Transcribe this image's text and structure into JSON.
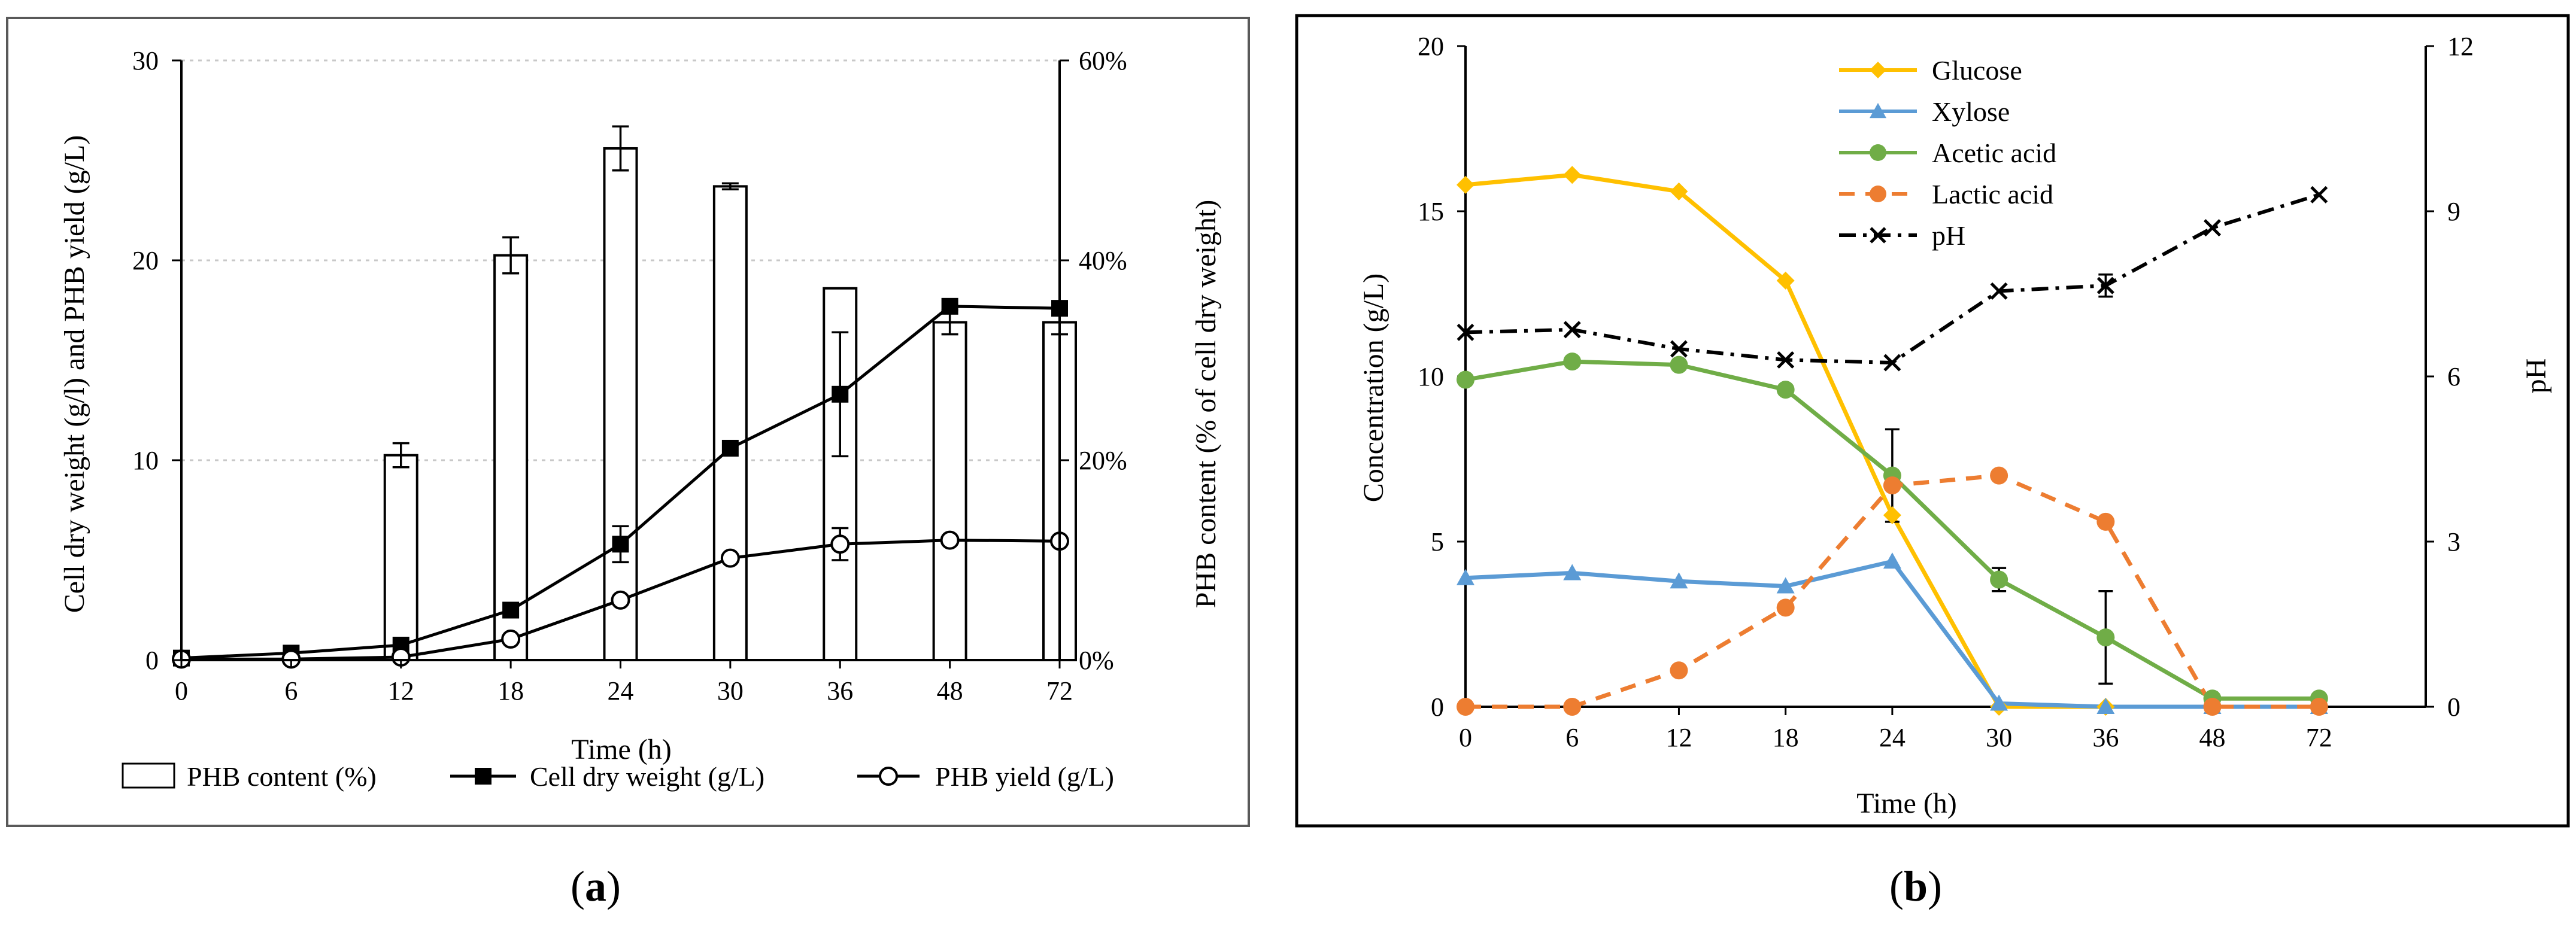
{
  "chart_data": [
    {
      "type": "bar",
      "panel_label": "(a)",
      "panel_label_parts": [
        "(",
        "a",
        ")"
      ],
      "xlabel": "Time (h)",
      "ylabel_left": "Cell dry weight (g/l) and PHB yield (g/L)",
      "ylabel_right": "PHB content (% of cell dry weight)",
      "categories": [
        "0",
        "6",
        "12",
        "18",
        "24",
        "30",
        "36",
        "48",
        "72"
      ],
      "ylim_left": [
        0,
        30
      ],
      "yticks_left": [
        "0",
        "10",
        "20",
        "30"
      ],
      "ylim_right": [
        0,
        60
      ],
      "yticks_right": [
        "0%",
        "20%",
        "40%",
        "60%"
      ],
      "grid": true,
      "legend_position": "bottom",
      "series": [
        {
          "name": "PHB content (%)",
          "kind": "bar",
          "axis": "right",
          "values": [
            0,
            0,
            20.5,
            40.5,
            51.2,
            47.4,
            37.2,
            33.8,
            33.8
          ],
          "errors": [
            0,
            0,
            1.2,
            1.8,
            2.2,
            0.3,
            0,
            1.2,
            1.2
          ]
        },
        {
          "name": "Cell dry weight (g/L)",
          "kind": "line",
          "marker": "filled-square",
          "axis": "left",
          "values": [
            0.1,
            0.35,
            0.75,
            2.5,
            5.8,
            10.6,
            13.3,
            17.7,
            17.6
          ],
          "errors": [
            0,
            0,
            0,
            0,
            0.9,
            0,
            3.1,
            0,
            0
          ]
        },
        {
          "name": "PHB yield (g/L)",
          "kind": "line",
          "marker": "open-circle",
          "axis": "left",
          "values": [
            0.05,
            0.05,
            0.15,
            1.05,
            3.0,
            5.1,
            5.8,
            6.0,
            5.95
          ],
          "errors": [
            0,
            0,
            0,
            0,
            0,
            0,
            0.8,
            0,
            0
          ]
        }
      ]
    },
    {
      "type": "line",
      "panel_label": "(b)",
      "panel_label_parts": [
        "(",
        "b",
        ")"
      ],
      "xlabel": "Time (h)",
      "ylabel_left": "Concentration (g/L)",
      "ylabel_right": "pH",
      "categories": [
        "0",
        "6",
        "12",
        "18",
        "24",
        "30",
        "36",
        "48",
        "72"
      ],
      "ylim_left": [
        0,
        20
      ],
      "yticks_left": [
        "0",
        "5",
        "10",
        "15",
        "20"
      ],
      "ylim_right": [
        0,
        12
      ],
      "yticks_right": [
        "0",
        "3",
        "6",
        "9",
        "12"
      ],
      "grid": false,
      "legend_position": "top-center",
      "series": [
        {
          "name": "Glucose",
          "color": "#FFC000",
          "marker": "diamond",
          "dash": "solid",
          "axis": "left",
          "values": [
            15.8,
            16.1,
            15.6,
            12.9,
            5.8,
            0,
            0,
            0,
            0
          ],
          "errors": [
            0,
            0,
            0,
            0,
            0,
            0,
            0,
            0,
            0
          ]
        },
        {
          "name": "Xylose",
          "color": "#5B9BD5",
          "marker": "triangle",
          "dash": "solid",
          "axis": "left",
          "values": [
            3.9,
            4.05,
            3.8,
            3.65,
            4.4,
            0.1,
            0,
            0,
            0
          ],
          "errors": [
            0,
            0,
            0,
            0,
            0,
            0,
            0,
            0,
            0
          ]
        },
        {
          "name": "Acetic acid",
          "color": "#70AD47",
          "marker": "circle",
          "dash": "solid",
          "axis": "left",
          "values": [
            9.9,
            10.45,
            10.35,
            9.6,
            7.0,
            3.85,
            2.1,
            0.25,
            0.25
          ],
          "errors": [
            0,
            0,
            0,
            0,
            1.4,
            0.35,
            1.4,
            0,
            0
          ]
        },
        {
          "name": "Lactic acid",
          "color": "#ED7D31",
          "marker": "circle",
          "dash": "dashed",
          "axis": "left",
          "values": [
            0,
            0,
            1.1,
            3.0,
            6.7,
            7.0,
            5.6,
            0,
            0
          ],
          "errors": [
            0,
            0,
            0,
            0,
            0,
            0,
            0,
            0,
            0
          ]
        },
        {
          "name": "pH",
          "color": "#000000",
          "marker": "x",
          "dash": "dashdot",
          "axis": "right",
          "values": [
            6.8,
            6.85,
            6.5,
            6.3,
            6.25,
            7.55,
            7.65,
            8.7,
            9.3
          ],
          "errors": [
            0,
            0,
            0,
            0,
            0,
            0,
            0.2,
            0,
            0
          ]
        }
      ]
    }
  ]
}
